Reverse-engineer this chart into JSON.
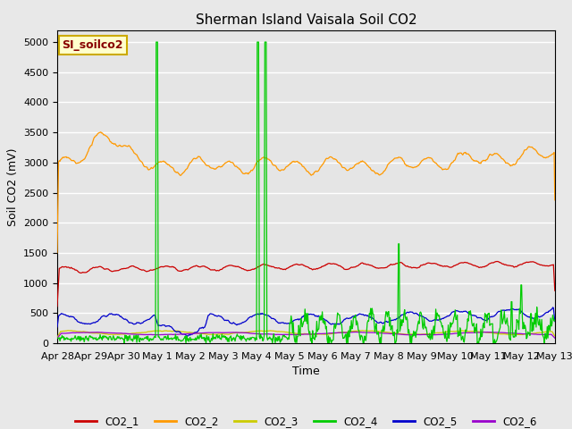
{
  "title": "Sherman Island Vaisala Soil CO2",
  "ylabel": "Soil CO2 (mV)",
  "xlabel": "Time",
  "legend_label": "SI_soilco2",
  "ylim": [
    0,
    5200
  ],
  "yticks": [
    0,
    500,
    1000,
    1500,
    2000,
    2500,
    3000,
    3500,
    4000,
    4500,
    5000
  ],
  "xtick_labels": [
    "Apr 28",
    "Apr 29",
    "Apr 30",
    "May 1",
    "May 2",
    "May 3",
    "May 4",
    "May 5",
    "May 6",
    "May 7",
    "May 8",
    "May 9",
    "May 10",
    "May 11",
    "May 12",
    "May 13"
  ],
  "colors": {
    "CO2_1": "#cc0000",
    "CO2_2": "#ff9900",
    "CO2_3": "#cccc00",
    "CO2_4": "#00cc00",
    "CO2_5": "#0000cc",
    "CO2_6": "#9900cc"
  },
  "background_color": "#e5e5e5",
  "grid_color": "#ffffff",
  "fig_bg": "#e8e8e8",
  "title_fontsize": 11,
  "label_fontsize": 9,
  "tick_fontsize": 8,
  "legend_box_facecolor": "#ffffcc",
  "legend_box_edgecolor": "#ccaa00",
  "legend_text_color": "#880000"
}
